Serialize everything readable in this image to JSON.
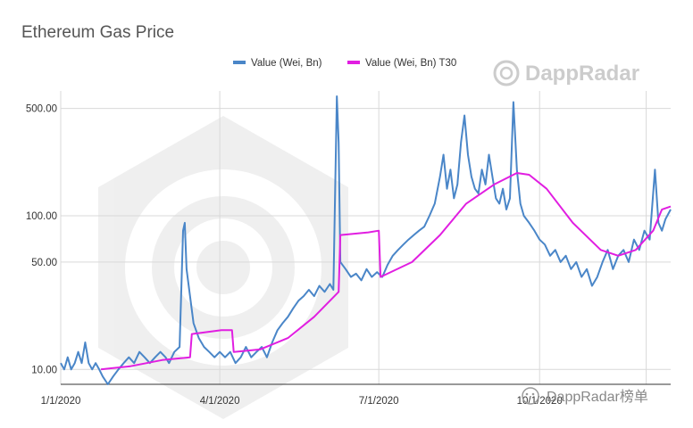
{
  "watermark": {
    "brand": "DappRadar",
    "caption": "DappRadar榜单"
  },
  "chart_data": {
    "type": "line",
    "title": "Ethereum Gas Price",
    "xlabel": "",
    "ylabel": "",
    "scale": "log",
    "ylim": [
      8,
      650
    ],
    "xlim": [
      "2020-01-01",
      "2020-12-15"
    ],
    "yticks": [
      10,
      50,
      100,
      500
    ],
    "ytick_labels": [
      "10.00",
      "50.00",
      "100.00",
      "500.00"
    ],
    "xticks": [
      "2020-01-01",
      "2020-04-01",
      "2020-07-01",
      "2020-10-01"
    ],
    "xtick_labels": [
      "1/1/2020",
      "4/1/2020",
      "7/1/2020",
      "10/1/2020"
    ],
    "grid": true,
    "legend_position": "top",
    "colors": {
      "daily": "#4a86c8",
      "t30": "#e11ee1"
    },
    "series": [
      {
        "name": "Value (Wei, Bn)",
        "points": [
          [
            "2020-01-01",
            11
          ],
          [
            "2020-01-03",
            10
          ],
          [
            "2020-01-05",
            12
          ],
          [
            "2020-01-07",
            10
          ],
          [
            "2020-01-09",
            11
          ],
          [
            "2020-01-11",
            13
          ],
          [
            "2020-01-13",
            11
          ],
          [
            "2020-01-15",
            15
          ],
          [
            "2020-01-17",
            11
          ],
          [
            "2020-01-19",
            10
          ],
          [
            "2020-01-21",
            11
          ],
          [
            "2020-01-23",
            10
          ],
          [
            "2020-01-25",
            9
          ],
          [
            "2020-01-28",
            8
          ],
          [
            "2020-01-31",
            9
          ],
          [
            "2020-02-03",
            10
          ],
          [
            "2020-02-06",
            11
          ],
          [
            "2020-02-09",
            12
          ],
          [
            "2020-02-12",
            11
          ],
          [
            "2020-02-15",
            13
          ],
          [
            "2020-02-18",
            12
          ],
          [
            "2020-02-21",
            11
          ],
          [
            "2020-02-24",
            12
          ],
          [
            "2020-02-27",
            13
          ],
          [
            "2020-03-01",
            12
          ],
          [
            "2020-03-03",
            11
          ],
          [
            "2020-03-06",
            13
          ],
          [
            "2020-03-09",
            14
          ],
          [
            "2020-03-11",
            80
          ],
          [
            "2020-03-12",
            90
          ],
          [
            "2020-03-13",
            45
          ],
          [
            "2020-03-15",
            30
          ],
          [
            "2020-03-17",
            20
          ],
          [
            "2020-03-20",
            16
          ],
          [
            "2020-03-23",
            14
          ],
          [
            "2020-03-26",
            13
          ],
          [
            "2020-03-29",
            12
          ],
          [
            "2020-04-01",
            13
          ],
          [
            "2020-04-04",
            12
          ],
          [
            "2020-04-07",
            13
          ],
          [
            "2020-04-10",
            11
          ],
          [
            "2020-04-13",
            12
          ],
          [
            "2020-04-16",
            14
          ],
          [
            "2020-04-19",
            12
          ],
          [
            "2020-04-22",
            13
          ],
          [
            "2020-04-25",
            14
          ],
          [
            "2020-04-28",
            12
          ],
          [
            "2020-05-01",
            15
          ],
          [
            "2020-05-04",
            18
          ],
          [
            "2020-05-07",
            20
          ],
          [
            "2020-05-10",
            22
          ],
          [
            "2020-05-13",
            25
          ],
          [
            "2020-05-16",
            28
          ],
          [
            "2020-05-19",
            30
          ],
          [
            "2020-05-22",
            33
          ],
          [
            "2020-05-25",
            30
          ],
          [
            "2020-05-28",
            35
          ],
          [
            "2020-05-31",
            32
          ],
          [
            "2020-06-03",
            36
          ],
          [
            "2020-06-05",
            33
          ],
          [
            "2020-06-07",
            600
          ],
          [
            "2020-06-08",
            300
          ],
          [
            "2020-06-09",
            50
          ],
          [
            "2020-06-12",
            45
          ],
          [
            "2020-06-15",
            40
          ],
          [
            "2020-06-18",
            42
          ],
          [
            "2020-06-21",
            38
          ],
          [
            "2020-06-24",
            45
          ],
          [
            "2020-06-27",
            40
          ],
          [
            "2020-06-30",
            43
          ],
          [
            "2020-07-03",
            40
          ],
          [
            "2020-07-06",
            48
          ],
          [
            "2020-07-09",
            55
          ],
          [
            "2020-07-12",
            60
          ],
          [
            "2020-07-15",
            65
          ],
          [
            "2020-07-18",
            70
          ],
          [
            "2020-07-21",
            75
          ],
          [
            "2020-07-24",
            80
          ],
          [
            "2020-07-27",
            85
          ],
          [
            "2020-07-30",
            100
          ],
          [
            "2020-08-02",
            120
          ],
          [
            "2020-08-05",
            180
          ],
          [
            "2020-08-07",
            250
          ],
          [
            "2020-08-09",
            150
          ],
          [
            "2020-08-11",
            200
          ],
          [
            "2020-08-13",
            130
          ],
          [
            "2020-08-15",
            160
          ],
          [
            "2020-08-17",
            300
          ],
          [
            "2020-08-19",
            450
          ],
          [
            "2020-08-21",
            250
          ],
          [
            "2020-08-23",
            180
          ],
          [
            "2020-08-25",
            150
          ],
          [
            "2020-08-27",
            140
          ],
          [
            "2020-08-29",
            200
          ],
          [
            "2020-08-31",
            160
          ],
          [
            "2020-09-02",
            250
          ],
          [
            "2020-09-04",
            180
          ],
          [
            "2020-09-06",
            130
          ],
          [
            "2020-09-08",
            120
          ],
          [
            "2020-09-10",
            150
          ],
          [
            "2020-09-12",
            110
          ],
          [
            "2020-09-14",
            130
          ],
          [
            "2020-09-16",
            550
          ],
          [
            "2020-09-18",
            200
          ],
          [
            "2020-09-20",
            120
          ],
          [
            "2020-09-22",
            100
          ],
          [
            "2020-09-25",
            90
          ],
          [
            "2020-09-28",
            80
          ],
          [
            "2020-10-01",
            70
          ],
          [
            "2020-10-04",
            65
          ],
          [
            "2020-10-07",
            55
          ],
          [
            "2020-10-10",
            60
          ],
          [
            "2020-10-13",
            50
          ],
          [
            "2020-10-16",
            55
          ],
          [
            "2020-10-19",
            45
          ],
          [
            "2020-10-22",
            50
          ],
          [
            "2020-10-25",
            40
          ],
          [
            "2020-10-28",
            45
          ],
          [
            "2020-10-31",
            35
          ],
          [
            "2020-11-03",
            40
          ],
          [
            "2020-11-06",
            50
          ],
          [
            "2020-11-09",
            60
          ],
          [
            "2020-11-12",
            45
          ],
          [
            "2020-11-15",
            55
          ],
          [
            "2020-11-18",
            60
          ],
          [
            "2020-11-21",
            50
          ],
          [
            "2020-11-24",
            70
          ],
          [
            "2020-11-27",
            60
          ],
          [
            "2020-11-30",
            80
          ],
          [
            "2020-12-03",
            70
          ],
          [
            "2020-12-06",
            200
          ],
          [
            "2020-12-08",
            90
          ],
          [
            "2020-12-10",
            80
          ],
          [
            "2020-12-12",
            95
          ],
          [
            "2020-12-15",
            110
          ]
        ]
      },
      {
        "name": "Value (Wei, Bn) T30",
        "points": [
          [
            "2020-01-24",
            10
          ],
          [
            "2020-02-10",
            10.5
          ],
          [
            "2020-02-28",
            11.5
          ],
          [
            "2020-03-15",
            12
          ],
          [
            "2020-03-16",
            17
          ],
          [
            "2020-04-02",
            18
          ],
          [
            "2020-04-08",
            18
          ],
          [
            "2020-04-09",
            13
          ],
          [
            "2020-04-24",
            13.5
          ],
          [
            "2020-05-10",
            16
          ],
          [
            "2020-05-25",
            22
          ],
          [
            "2020-06-08",
            32
          ],
          [
            "2020-06-09",
            75
          ],
          [
            "2020-06-25",
            78
          ],
          [
            "2020-07-01",
            80
          ],
          [
            "2020-07-02",
            40
          ],
          [
            "2020-07-20",
            50
          ],
          [
            "2020-08-05",
            75
          ],
          [
            "2020-08-20",
            120
          ],
          [
            "2020-09-05",
            160
          ],
          [
            "2020-09-18",
            190
          ],
          [
            "2020-09-25",
            185
          ],
          [
            "2020-10-05",
            150
          ],
          [
            "2020-10-20",
            90
          ],
          [
            "2020-11-05",
            60
          ],
          [
            "2020-11-15",
            55
          ],
          [
            "2020-11-25",
            60
          ],
          [
            "2020-12-05",
            80
          ],
          [
            "2020-12-10",
            110
          ],
          [
            "2020-12-15",
            115
          ]
        ]
      }
    ]
  }
}
